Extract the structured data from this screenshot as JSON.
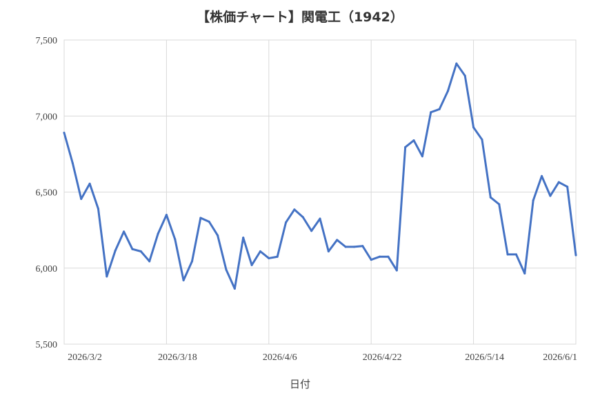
{
  "chart_data": {
    "type": "line",
    "title": "【株価チャート】関電工（1942）",
    "xlabel": "日付",
    "ylabel": "",
    "ylim": [
      5500,
      7500
    ],
    "y_ticks": [
      "5,500",
      "6,000",
      "6,500",
      "7,000",
      "7,500"
    ],
    "y_tick_values": [
      5500,
      6000,
      6500,
      7000,
      7500
    ],
    "x_tick_labels": [
      "2026/3/2",
      "2026/3/18",
      "2026/4/6",
      "2026/4/22",
      "2026/5/14",
      "2026/6/1"
    ],
    "x_tick_indices": [
      0,
      12,
      24,
      36,
      48,
      60
    ],
    "x_gridlines": true,
    "y_gridlines": true,
    "line_color": "#4472C4",
    "series": [
      {
        "values": [
          6890,
          6690,
          6455,
          6555,
          6390,
          5945,
          6115,
          6240,
          6125,
          6110,
          6045,
          6225,
          6350,
          6190,
          5920,
          6045,
          6330,
          6305,
          6215,
          5990,
          5865,
          6200,
          6020,
          6110,
          6065,
          6075,
          6300,
          6385,
          6335,
          6245,
          6325,
          6110,
          6185,
          6140,
          6140,
          6145,
          6055,
          6075,
          6075,
          5985,
          6795,
          6840,
          6735,
          7025,
          7045,
          7165,
          7345,
          7265,
          6925,
          6845,
          6465,
          6420,
          6090,
          6090,
          5965,
          6445,
          6605,
          6475,
          6565,
          6535,
          6085
        ]
      }
    ]
  }
}
